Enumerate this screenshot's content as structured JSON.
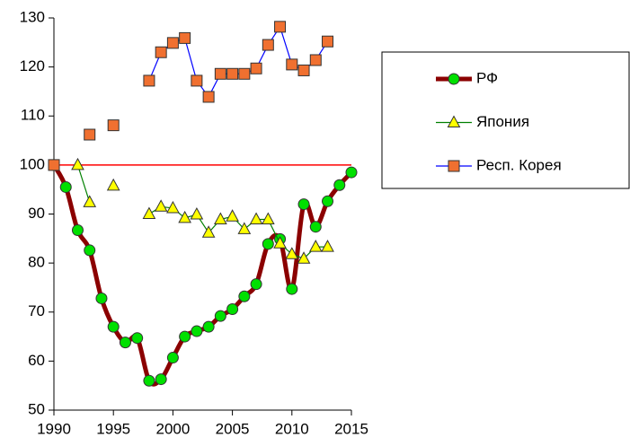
{
  "chart_data": {
    "type": "line",
    "x": [
      1990,
      1991,
      1992,
      1993,
      1994,
      1995,
      1996,
      1997,
      1998,
      1999,
      2000,
      2001,
      2002,
      2003,
      2004,
      2005,
      2006,
      2007,
      2008,
      2009,
      2010,
      2011,
      2012,
      2013,
      2014,
      2015
    ],
    "series": [
      {
        "name": "РФ",
        "color": "#8b0000",
        "marker": "circle",
        "marker_color": "#00e000",
        "smooth": true,
        "values": [
          100,
          95.5,
          86.7,
          82.6,
          72.8,
          67,
          63.8,
          64.7,
          56,
          56.3,
          60.7,
          65,
          66.1,
          67,
          69.2,
          70.6,
          73.2,
          75.7,
          83.9,
          84.9,
          74.7,
          92,
          87.4,
          92.6,
          95.9,
          98.5
        ]
      },
      {
        "name": "Япония",
        "color": "#008000",
        "marker": "triangle",
        "marker_color": "#ffff00",
        "values": [
          null,
          null,
          100,
          92.4,
          null,
          95.8,
          null,
          null,
          90,
          91.5,
          91.2,
          89.2,
          89.9,
          86.2,
          88.9,
          89.5,
          86.9,
          88.9,
          88.9,
          84,
          81.8,
          80.9,
          83.3,
          83.3,
          null,
          null
        ]
      },
      {
        "name": "Респ. Корея",
        "color": "#0000ff",
        "marker": "square",
        "marker_color": "#f07030",
        "values": [
          100,
          null,
          null,
          106.2,
          null,
          108.1,
          null,
          null,
          117.2,
          123,
          124.9,
          125.9,
          117.2,
          113.9,
          118.6,
          118.6,
          118.6,
          119.7,
          124.5,
          128.2,
          120.5,
          119.3,
          121.4,
          125.2,
          null,
          null
        ]
      }
    ],
    "reference_line": {
      "value": 100,
      "color": "#ff0000"
    },
    "xlim": [
      1990,
      2015
    ],
    "xticks": [
      1990,
      1995,
      2000,
      2005,
      2010,
      2015
    ],
    "ylim": [
      50,
      130
    ],
    "yticks": [
      50,
      60,
      70,
      80,
      90,
      100,
      110,
      120,
      130
    ]
  }
}
